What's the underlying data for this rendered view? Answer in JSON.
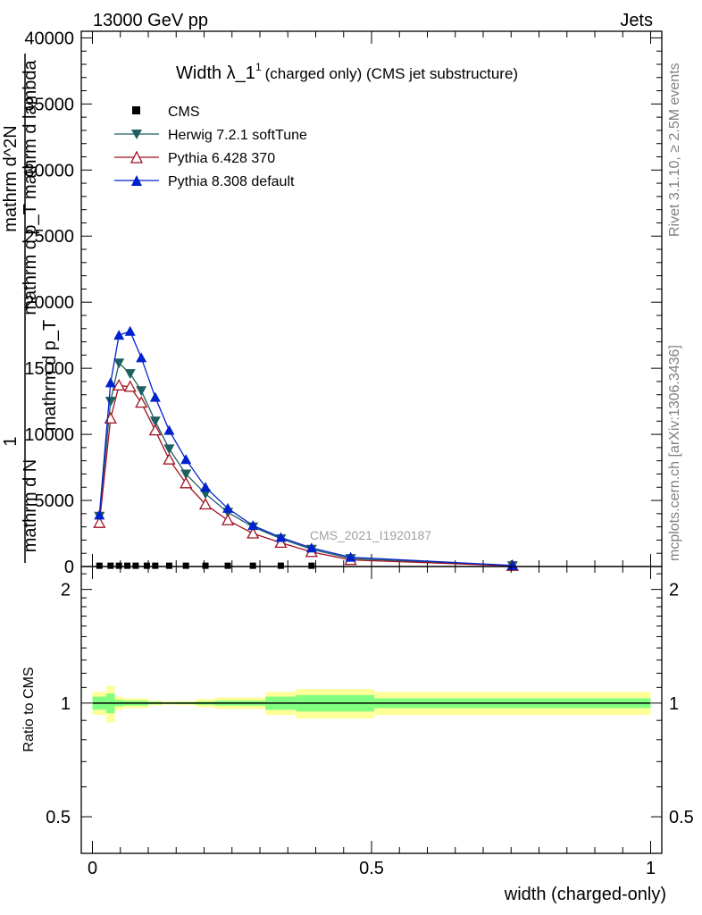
{
  "header": {
    "energy_label": "13000 GeV pp",
    "process_label": "Jets"
  },
  "side_labels": {
    "rivet": "Rivet 3.1.10, ≥ 2.5M events",
    "mcplots": "mcplots.cern.ch [arXiv:1306.3436]"
  },
  "watermark": "CMS_2021_I1920187",
  "main_ylabel_lines": [
    "1",
    "mathrm d N",
    "mathrm d p_T",
    "mathrm d^2N",
    "mathrm d p_T mathrm d lambda"
  ],
  "colors": {
    "cms": "#000000",
    "herwig": "#1f5f5f",
    "pythia6": "#a01020",
    "pythia8": "#0022cc",
    "band_inner": "#80ff80",
    "band_outer": "#ffff99"
  },
  "chart_data": [
    {
      "type": "line",
      "title": "Width λ_1",
      "title_superscript": "1",
      "title_suffix": "(charged only) (CMS jet substructure)",
      "xlabel": "",
      "ylabel": "",
      "xlim": [
        -0.02,
        1.02
      ],
      "ylim": [
        0,
        40500
      ],
      "yticks": [
        0,
        5000,
        10000,
        15000,
        20000,
        25000,
        30000,
        35000,
        40000
      ],
      "ytick_labels": [
        "0",
        "5000",
        "10000",
        "15000",
        "20000",
        "25000",
        "30000",
        "35000",
        "40000"
      ],
      "legend_position": "top-left",
      "series": [
        {
          "name": "CMS",
          "marker": "square",
          "x": [
            0.0125,
            0.0325,
            0.0475,
            0.0625,
            0.0775,
            0.0975,
            0.1125,
            0.1375,
            0.1675,
            0.2025,
            0.2425,
            0.2875,
            0.3375,
            0.3925
          ],
          "y": [
            60,
            60,
            60,
            60,
            60,
            60,
            60,
            60,
            60,
            60,
            60,
            60,
            60,
            60
          ]
        },
        {
          "name": "Herwig 7.2.1 softTune",
          "marker": "triangle-down",
          "x": [
            0.0125,
            0.0325,
            0.0475,
            0.0675,
            0.0875,
            0.1125,
            0.1375,
            0.1675,
            0.2025,
            0.2425,
            0.2875,
            0.3375,
            0.3925,
            0.4625,
            0.7525
          ],
          "y": [
            3800,
            12500,
            15400,
            14600,
            13300,
            11000,
            8900,
            7000,
            5500,
            4100,
            3000,
            2100,
            1300,
            600,
            60
          ]
        },
        {
          "name": "Pythia 6.428 370",
          "marker": "triangle-up-open",
          "x": [
            0.0125,
            0.0325,
            0.0475,
            0.0675,
            0.0875,
            0.1125,
            0.1375,
            0.1675,
            0.2025,
            0.2425,
            0.2875,
            0.3375,
            0.3925,
            0.4625,
            0.7525
          ],
          "y": [
            3300,
            11200,
            13700,
            13600,
            12400,
            10300,
            8100,
            6300,
            4700,
            3500,
            2500,
            1800,
            1100,
            500,
            50
          ]
        },
        {
          "name": "Pythia 8.308 default",
          "marker": "triangle-up",
          "x": [
            0.0125,
            0.0325,
            0.0475,
            0.0675,
            0.0875,
            0.1125,
            0.1375,
            0.1675,
            0.2025,
            0.2425,
            0.2875,
            0.3375,
            0.3925,
            0.4625,
            0.7525
          ],
          "y": [
            3900,
            13900,
            17500,
            17800,
            15800,
            12800,
            10300,
            8100,
            6000,
            4400,
            3100,
            2200,
            1400,
            700,
            80
          ]
        }
      ]
    },
    {
      "type": "line",
      "title": "",
      "xlabel": "width (charged-only)",
      "ylabel": "Ratio to CMS",
      "xlim": [
        -0.02,
        1.02
      ],
      "ylim": [
        0.4,
        2.3
      ],
      "log_y": true,
      "yticks": [
        0.5,
        1,
        2
      ],
      "ytick_labels": [
        "0.5",
        "1",
        "2"
      ],
      "xticks": [
        0,
        0.5,
        1
      ],
      "xtick_labels": [
        "0",
        "0.5",
        "1"
      ],
      "reference_line": 1,
      "bands": [
        {
          "x0": 0.0,
          "x1": 0.025,
          "inner": 0.04,
          "outer": 0.07
        },
        {
          "x0": 0.025,
          "x1": 0.04,
          "inner": 0.06,
          "outer": 0.11
        },
        {
          "x0": 0.04,
          "x1": 0.055,
          "inner": 0.02,
          "outer": 0.04
        },
        {
          "x0": 0.055,
          "x1": 0.1,
          "inner": 0.015,
          "outer": 0.03
        },
        {
          "x0": 0.1,
          "x1": 0.125,
          "inner": 0.008,
          "outer": 0.015
        },
        {
          "x0": 0.125,
          "x1": 0.15,
          "inner": 0.005,
          "outer": 0.01
        },
        {
          "x0": 0.15,
          "x1": 0.185,
          "inner": 0.006,
          "outer": 0.012
        },
        {
          "x0": 0.185,
          "x1": 0.22,
          "inner": 0.01,
          "outer": 0.025
        },
        {
          "x0": 0.22,
          "x1": 0.265,
          "inner": 0.015,
          "outer": 0.035
        },
        {
          "x0": 0.265,
          "x1": 0.31,
          "inner": 0.015,
          "outer": 0.035
        },
        {
          "x0": 0.31,
          "x1": 0.365,
          "inner": 0.04,
          "outer": 0.07
        },
        {
          "x0": 0.365,
          "x1": 0.42,
          "inner": 0.05,
          "outer": 0.09
        },
        {
          "x0": 0.42,
          "x1": 0.505,
          "inner": 0.05,
          "outer": 0.09
        },
        {
          "x0": 0.505,
          "x1": 1.0,
          "inner": 0.03,
          "outer": 0.07
        }
      ]
    }
  ]
}
